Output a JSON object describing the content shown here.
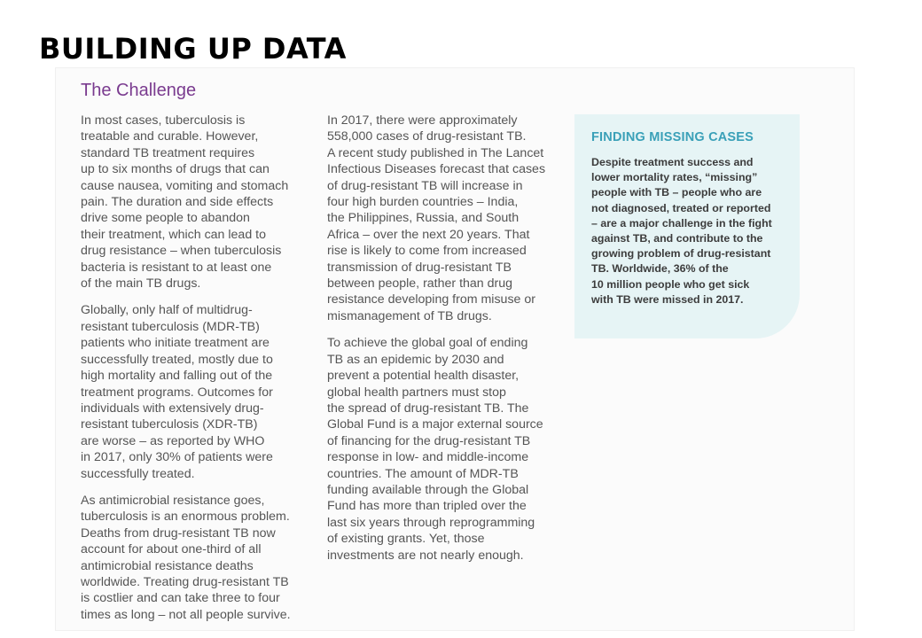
{
  "slide": {
    "title": "BUILDING UP DATA"
  },
  "article": {
    "heading": "The Challenge",
    "column1": [
      "In most cases, tuberculosis is\ntreatable and curable. However,\nstandard TB treatment requires\nup to six months of drugs that can\ncause nausea, vomiting and stomach\npain. The duration and side effects\ndrive some people to abandon\ntheir treatment, which can lead to\ndrug resistance – when tuberculosis\nbacteria is resistant to at least one\nof the main TB drugs.",
      "Globally, only half of multidrug-\nresistant tuberculosis (MDR-TB)\npatients who initiate treatment are\nsuccessfully treated, mostly due to\nhigh mortality and falling out of the\ntreatment programs. Outcomes for\nindividuals with extensively drug-\nresistant tuberculosis (XDR-TB)\nare worse – as reported by WHO\nin 2017, only 30% of patients were\nsuccessfully treated.",
      "As antimicrobial resistance goes,\ntuberculosis is an enormous problem.\nDeaths from drug-resistant TB now\naccount for about one-third of all\nantimicrobial resistance deaths\nworldwide. Treating drug-resistant TB\nis costlier and can take three to four\ntimes as long – not all people survive."
    ],
    "column2": [
      "In 2017, there were approximately\n558,000 cases of drug-resistant TB.\nA recent study published in The Lancet\nInfectious Diseases forecast that cases\nof drug-resistant TB will increase in\nfour high burden countries – India,\nthe Philippines, Russia, and South\nAfrica – over the next 20 years. That\nrise is likely to come from increased\ntransmission of drug-resistant TB\nbetween people, rather than drug\nresistance developing from misuse or\nmismanagement of TB drugs.",
      "To achieve the global goal of ending\nTB as an epidemic by 2030 and\nprevent a potential health disaster,\nglobal health partners must stop\nthe spread of drug-resistant TB. The\nGlobal Fund is a major external source\nof financing for the drug-resistant TB\nresponse in low- and middle-income\ncountries. The amount of MDR-TB\nfunding available through the Global\nFund has more than tripled over the\nlast six years through reprogramming\nof existing grants. Yet, those\ninvestments are not nearly enough."
    ],
    "sidebar": {
      "title": "FINDING MISSING CASES",
      "text": "Despite treatment success and\nlower mortality rates, “missing”\npeople with TB – people who are\nnot diagnosed, treated or reported\n– are a major challenge in the fight\nagainst TB, and contribute to the\ngrowing problem of drug-resistant\nTB. Worldwide, 36% of the\n10 million people who get sick\nwith TB were missed in 2017."
    },
    "colors": {
      "heading": "#7a3b8f",
      "sidebar_title": "#3aa0b8",
      "sidebar_background": "#e6f4f5"
    }
  }
}
